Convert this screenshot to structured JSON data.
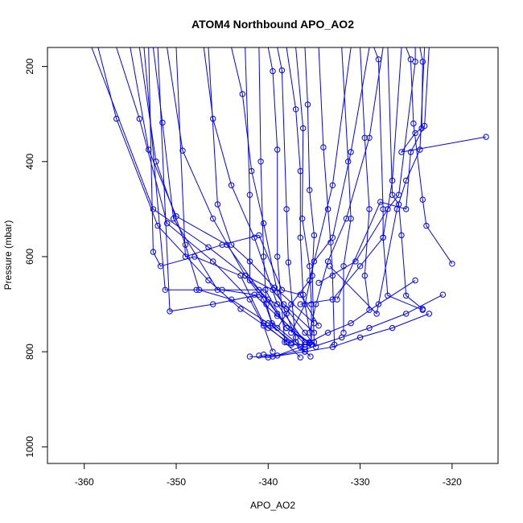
{
  "chart_data": {
    "type": "line",
    "title": "ATOM4 Northbound APO_AO2",
    "xlabel": "APO_AO2",
    "ylabel": "Pressure (mbar)",
    "xlim": [
      -364,
      -315
    ],
    "ylim": [
      1035,
      160
    ],
    "y_reversed": true,
    "grid": false,
    "xticks": [
      -360,
      -350,
      -340,
      -330,
      -320
    ],
    "xtick_labels": [
      "-360",
      "-350",
      "-340",
      "-330",
      "-320"
    ],
    "yticks": [
      200,
      400,
      600,
      800,
      1000
    ],
    "ytick_labels": [
      "200",
      "400",
      "600",
      "800",
      "1000"
    ],
    "series_color": "#0000ff",
    "series": [
      {
        "x": [
          -359.2,
          -352.5,
          -346.5,
          -342.5,
          -340.5,
          -339.6,
          -337.0,
          -336.0
        ],
        "y": [
          160,
          500,
          580,
          640,
          690,
          740,
          780,
          790
        ]
      },
      {
        "x": [
          -356.5,
          -354.0,
          -351.0,
          -346.0,
          -342.0,
          -340.5,
          -339.5
        ],
        "y": [
          160,
          310,
          530,
          610,
          690,
          745,
          800
        ]
      },
      {
        "x": [
          -358.5,
          -356.5,
          -352.0,
          -346.5,
          -343.0,
          -340.0,
          -337.5,
          -335.3
        ],
        "y": [
          160,
          310,
          535,
          650,
          710,
          750,
          785,
          785
        ]
      },
      {
        "x": [
          -355.0,
          -353.0,
          -350.0,
          -344.5,
          -341.0,
          -339.0,
          -336.0
        ],
        "y": [
          160,
          375,
          515,
          575,
          670,
          720,
          785
        ]
      },
      {
        "x": [
          -352.5,
          -351.5,
          -350.3,
          -345.5,
          -340.3,
          -338.0,
          -335.5
        ],
        "y": [
          160,
          318,
          520,
          670,
          670,
          750,
          780
        ]
      },
      {
        "x": [
          -351.0,
          -349.3,
          -346.0,
          -342.5,
          -339.5,
          -338.3,
          -335.0
        ],
        "y": [
          160,
          377,
          520,
          640,
          670,
          700,
          760
        ]
      },
      {
        "x": [
          -350.0,
          -349.0,
          -345.0,
          -341.0,
          -338.5,
          -336.5,
          -334.5
        ],
        "y": [
          160,
          600,
          575,
          555,
          670,
          680,
          745
        ]
      },
      {
        "x": [
          -353.0,
          -352.5,
          -351.7,
          -348.0,
          -343.0,
          -340.5,
          -338.0
        ],
        "y": [
          160,
          590,
          620,
          600,
          640,
          740,
          780
        ]
      },
      {
        "x": [
          -354.0,
          -352.2,
          -349.0,
          -347.5,
          -344.0,
          -340.0,
          -336.0
        ],
        "y": [
          160,
          400,
          575,
          670,
          690,
          740,
          800
        ]
      },
      {
        "x": [
          -353.5,
          -351.2,
          -347.8,
          -345.0,
          -341.5,
          -339.0,
          -335.5
        ],
        "y": [
          160,
          670,
          670,
          670,
          680,
          725,
          782
        ]
      },
      {
        "x": [
          -352.0,
          -350.7,
          -346.0,
          -341.0,
          -338.0,
          -336.0,
          -334.8
        ],
        "y": [
          160,
          715,
          700,
          680,
          710,
          760,
          790
        ]
      },
      {
        "x": [
          -347.0,
          -346.0,
          -344.0,
          -341.5,
          -339.0,
          -336.0
        ],
        "y": [
          160,
          310,
          450,
          560,
          700,
          780
        ]
      },
      {
        "x": [
          -346.5,
          -345.5,
          -344.0,
          -342.0,
          -339.3,
          -335.0
        ],
        "y": [
          160,
          490,
          575,
          610,
          665,
          740
        ]
      },
      {
        "x": [
          -344.0,
          -342.8,
          -341.8,
          -340.5,
          -339.0,
          -337.0
        ],
        "y": [
          160,
          258,
          420,
          530,
          675,
          770
        ]
      },
      {
        "x": [
          -342.5,
          -342.0,
          -342.0,
          -340.0,
          -338.0,
          -335.5
        ],
        "y": [
          160,
          470,
          650,
          690,
          750,
          782
        ]
      },
      {
        "x": [
          -341.0,
          -340.8,
          -340.5,
          -340.2,
          -339.5,
          -337.5
        ],
        "y": [
          160,
          400,
          600,
          700,
          745,
          782
        ]
      },
      {
        "x": [
          -340.0,
          -339.5,
          -339.0,
          -339.0,
          -338.2,
          -336.5
        ],
        "y": [
          160,
          210,
          375,
          600,
          780,
          812
        ]
      },
      {
        "x": [
          -339.0,
          -338.5,
          -338.0,
          -337.8,
          -337.0,
          -335.4
        ],
        "y": [
          160,
          208,
          500,
          612,
          780,
          810
        ]
      },
      {
        "x": [
          -338.0,
          -337.0,
          -336.5,
          -336.5,
          -336.2,
          -335.2
        ],
        "y": [
          160,
          290,
          420,
          560,
          680,
          785
        ]
      },
      {
        "x": [
          -337.0,
          -336.2,
          -336.3,
          -335.5,
          -335.3,
          -335.3
        ],
        "y": [
          160,
          330,
          520,
          620,
          700,
          785
        ]
      },
      {
        "x": [
          -336.0,
          -335.7,
          -335.5,
          -335.0,
          -335.2,
          -335.0
        ],
        "y": [
          160,
          280,
          460,
          555,
          640,
          780
        ]
      },
      {
        "x": [
          -334.5,
          -334.0,
          -333.5,
          -333.2,
          -333.0,
          -332.8
        ],
        "y": [
          160,
          370,
          500,
          570,
          640,
          785
        ]
      },
      {
        "x": [
          -332.0,
          -331.3,
          -331.0,
          -331.8,
          -331.8
        ],
        "y": [
          160,
          400,
          520,
          620,
          760
        ]
      },
      {
        "x": [
          -330.0,
          -329.5,
          -329.0,
          -329.5,
          -329.0
        ],
        "y": [
          160,
          350,
          500,
          640,
          712
        ]
      },
      {
        "x": [
          -328.5,
          -328.0,
          -327.5,
          -327.5,
          -327.0,
          -323.2
        ],
        "y": [
          160,
          185,
          500,
          560,
          682,
          712
        ]
      },
      {
        "x": [
          -327.0,
          -326.5,
          -325.8,
          -325.5,
          -325.0,
          -323.2
        ],
        "y": [
          160,
          470,
          490,
          555,
          682,
          710
        ]
      },
      {
        "x": [
          -325.0,
          -324.5,
          -324.2,
          -323.2,
          -322.8,
          -320.0
        ],
        "y": [
          160,
          185,
          320,
          480,
          535,
          615
        ]
      },
      {
        "x": [
          -323.5,
          -323.2,
          -323.3,
          -324.0,
          -325.5,
          -316.3
        ],
        "y": [
          160,
          190,
          330,
          340,
          380,
          348
        ]
      },
      {
        "x": [
          -322.5,
          -323.0,
          -324.5,
          -325.0,
          -327.8,
          -332.5
        ],
        "y": [
          160,
          325,
          380,
          500,
          485,
          690
        ]
      },
      {
        "x": [
          -323.0,
          -323.5,
          -325.0,
          -326.0,
          -328.2,
          -333.3
        ],
        "y": [
          160,
          375,
          440,
          500,
          720,
          620
        ]
      },
      {
        "x": [
          -324.0,
          -324.0,
          -325.8,
          -327.0,
          -330.5,
          -334.5
        ],
        "y": [
          160,
          190,
          470,
          500,
          610,
          655
        ]
      },
      {
        "x": [
          -325.5,
          -326.5,
          -327.5,
          -330.0,
          -333.0,
          -336.5
        ],
        "y": [
          160,
          440,
          560,
          620,
          690,
          700
        ]
      },
      {
        "x": [
          -327.5,
          -329.0,
          -331.5,
          -333.5,
          -334.8,
          -335.5
        ],
        "y": [
          160,
          350,
          520,
          610,
          700,
          760
        ]
      },
      {
        "x": [
          -329.0,
          -331.0,
          -333.0,
          -335.0,
          -336.0,
          -337.5
        ],
        "y": [
          160,
          380,
          560,
          610,
          700,
          760
        ]
      },
      {
        "x": [
          -331.0,
          -333.0,
          -335.5,
          -337.5,
          -338.0,
          -339.0
        ],
        "y": [
          160,
          450,
          650,
          700,
          720,
          750
        ]
      },
      {
        "x": [
          -342.0,
          -340.0,
          -336.0,
          -333.0,
          -330.0,
          -326.5,
          -322.5
        ],
        "y": [
          810,
          812,
          800,
          790,
          770,
          750,
          720
        ]
      },
      {
        "x": [
          -341.0,
          -339.5,
          -336.0,
          -332.0,
          -329.0,
          -325.0,
          -321.0
        ],
        "y": [
          808,
          810,
          795,
          770,
          750,
          720,
          680
        ]
      },
      {
        "x": [
          -340.5,
          -339.0,
          -336.5,
          -333.5,
          -331.0,
          -328.0,
          -324.0
        ],
        "y": [
          806,
          808,
          790,
          760,
          740,
          700,
          650
        ]
      }
    ]
  }
}
